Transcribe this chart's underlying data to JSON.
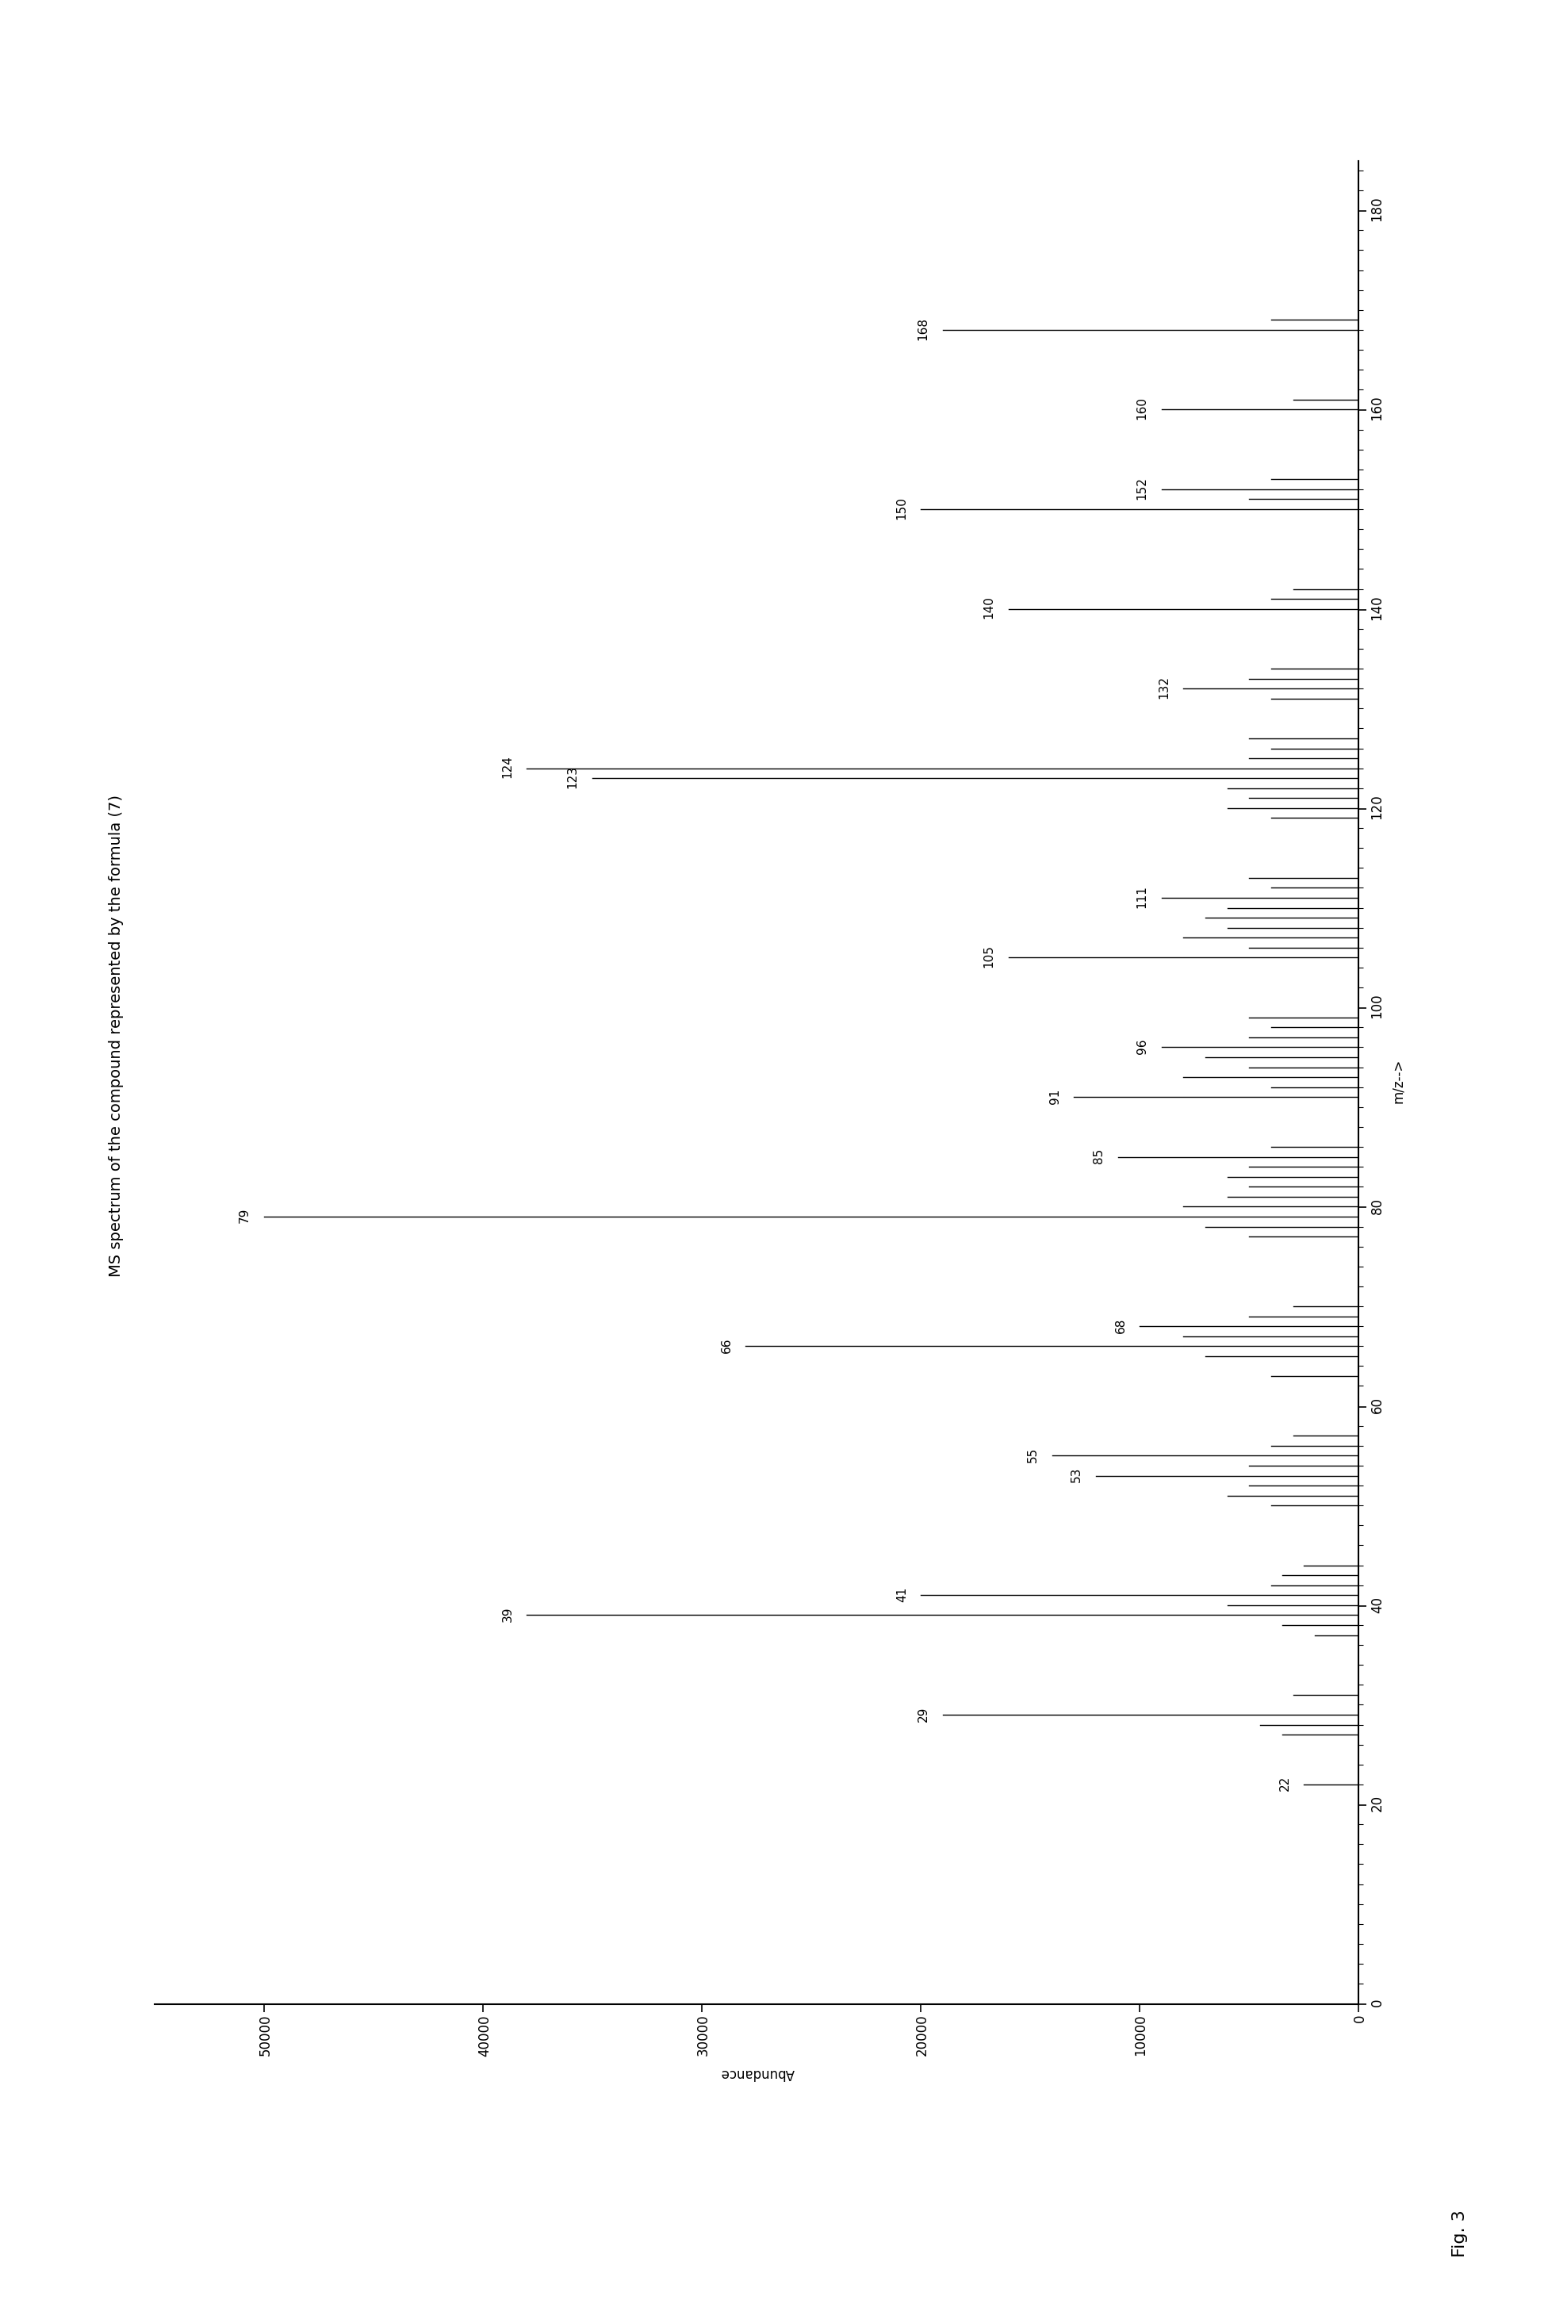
{
  "title": "MS spectrum of the compound represented by the formula (7)",
  "fig_label": "Fig. 3",
  "xlabel": "m/z-->",
  "ylabel": "Abundance",
  "xlim": [
    0,
    185
  ],
  "ylim": [
    0,
    55000
  ],
  "xticks": [
    0,
    20,
    40,
    60,
    80,
    100,
    120,
    140,
    160,
    180
  ],
  "yticks": [
    0,
    10000,
    20000,
    30000,
    40000,
    50000
  ],
  "peaks": [
    {
      "mz": 22,
      "abundance": 2500,
      "label": "22"
    },
    {
      "mz": 27,
      "abundance": 3500,
      "label": null
    },
    {
      "mz": 28,
      "abundance": 4500,
      "label": null
    },
    {
      "mz": 29,
      "abundance": 19000,
      "label": "29"
    },
    {
      "mz": 31,
      "abundance": 3000,
      "label": null
    },
    {
      "mz": 37,
      "abundance": 2000,
      "label": null
    },
    {
      "mz": 38,
      "abundance": 3500,
      "label": null
    },
    {
      "mz": 39,
      "abundance": 38000,
      "label": "39"
    },
    {
      "mz": 40,
      "abundance": 6000,
      "label": null
    },
    {
      "mz": 41,
      "abundance": 20000,
      "label": "41"
    },
    {
      "mz": 42,
      "abundance": 4000,
      "label": null
    },
    {
      "mz": 43,
      "abundance": 3500,
      "label": null
    },
    {
      "mz": 44,
      "abundance": 2500,
      "label": null
    },
    {
      "mz": 50,
      "abundance": 4000,
      "label": null
    },
    {
      "mz": 51,
      "abundance": 6000,
      "label": null
    },
    {
      "mz": 52,
      "abundance": 5000,
      "label": null
    },
    {
      "mz": 53,
      "abundance": 12000,
      "label": "53"
    },
    {
      "mz": 54,
      "abundance": 5000,
      "label": null
    },
    {
      "mz": 55,
      "abundance": 14000,
      "label": "55"
    },
    {
      "mz": 56,
      "abundance": 4000,
      "label": null
    },
    {
      "mz": 57,
      "abundance": 3000,
      "label": null
    },
    {
      "mz": 63,
      "abundance": 4000,
      "label": null
    },
    {
      "mz": 65,
      "abundance": 7000,
      "label": null
    },
    {
      "mz": 66,
      "abundance": 28000,
      "label": "66"
    },
    {
      "mz": 67,
      "abundance": 8000,
      "label": null
    },
    {
      "mz": 68,
      "abundance": 10000,
      "label": "68"
    },
    {
      "mz": 69,
      "abundance": 5000,
      "label": null
    },
    {
      "mz": 70,
      "abundance": 3000,
      "label": null
    },
    {
      "mz": 77,
      "abundance": 5000,
      "label": null
    },
    {
      "mz": 78,
      "abundance": 7000,
      "label": null
    },
    {
      "mz": 79,
      "abundance": 50000,
      "label": "79"
    },
    {
      "mz": 80,
      "abundance": 8000,
      "label": null
    },
    {
      "mz": 81,
      "abundance": 6000,
      "label": null
    },
    {
      "mz": 82,
      "abundance": 5000,
      "label": null
    },
    {
      "mz": 83,
      "abundance": 6000,
      "label": null
    },
    {
      "mz": 84,
      "abundance": 5000,
      "label": null
    },
    {
      "mz": 85,
      "abundance": 11000,
      "label": "85"
    },
    {
      "mz": 86,
      "abundance": 4000,
      "label": null
    },
    {
      "mz": 91,
      "abundance": 13000,
      "label": "91"
    },
    {
      "mz": 92,
      "abundance": 4000,
      "label": null
    },
    {
      "mz": 93,
      "abundance": 8000,
      "label": null
    },
    {
      "mz": 94,
      "abundance": 5000,
      "label": null
    },
    {
      "mz": 95,
      "abundance": 7000,
      "label": null
    },
    {
      "mz": 96,
      "abundance": 9000,
      "label": "96"
    },
    {
      "mz": 97,
      "abundance": 5000,
      "label": null
    },
    {
      "mz": 98,
      "abundance": 4000,
      "label": null
    },
    {
      "mz": 99,
      "abundance": 5000,
      "label": null
    },
    {
      "mz": 105,
      "abundance": 16000,
      "label": "105"
    },
    {
      "mz": 106,
      "abundance": 5000,
      "label": null
    },
    {
      "mz": 107,
      "abundance": 8000,
      "label": null
    },
    {
      "mz": 108,
      "abundance": 6000,
      "label": null
    },
    {
      "mz": 109,
      "abundance": 7000,
      "label": null
    },
    {
      "mz": 110,
      "abundance": 6000,
      "label": null
    },
    {
      "mz": 111,
      "abundance": 9000,
      "label": "111"
    },
    {
      "mz": 112,
      "abundance": 4000,
      "label": null
    },
    {
      "mz": 113,
      "abundance": 5000,
      "label": null
    },
    {
      "mz": 119,
      "abundance": 4000,
      "label": null
    },
    {
      "mz": 120,
      "abundance": 6000,
      "label": null
    },
    {
      "mz": 121,
      "abundance": 5000,
      "label": null
    },
    {
      "mz": 122,
      "abundance": 6000,
      "label": null
    },
    {
      "mz": 123,
      "abundance": 35000,
      "label": "123"
    },
    {
      "mz": 124,
      "abundance": 38000,
      "label": "124"
    },
    {
      "mz": 125,
      "abundance": 5000,
      "label": null
    },
    {
      "mz": 126,
      "abundance": 4000,
      "label": null
    },
    {
      "mz": 127,
      "abundance": 5000,
      "label": null
    },
    {
      "mz": 131,
      "abundance": 4000,
      "label": null
    },
    {
      "mz": 132,
      "abundance": 8000,
      "label": "132"
    },
    {
      "mz": 133,
      "abundance": 5000,
      "label": null
    },
    {
      "mz": 134,
      "abundance": 4000,
      "label": null
    },
    {
      "mz": 140,
      "abundance": 16000,
      "label": "140"
    },
    {
      "mz": 141,
      "abundance": 4000,
      "label": null
    },
    {
      "mz": 142,
      "abundance": 3000,
      "label": null
    },
    {
      "mz": 150,
      "abundance": 20000,
      "label": "150"
    },
    {
      "mz": 151,
      "abundance": 5000,
      "label": null
    },
    {
      "mz": 152,
      "abundance": 9000,
      "label": "152"
    },
    {
      "mz": 153,
      "abundance": 4000,
      "label": null
    },
    {
      "mz": 160,
      "abundance": 9000,
      "label": "160"
    },
    {
      "mz": 161,
      "abundance": 3000,
      "label": null
    },
    {
      "mz": 168,
      "abundance": 19000,
      "label": "168"
    },
    {
      "mz": 169,
      "abundance": 4000,
      "label": null
    }
  ],
  "background_color": "#ffffff",
  "line_color": "#000000",
  "label_fontsize": 11,
  "axis_fontsize": 12,
  "title_fontsize": 14,
  "figlabel_fontsize": 16
}
